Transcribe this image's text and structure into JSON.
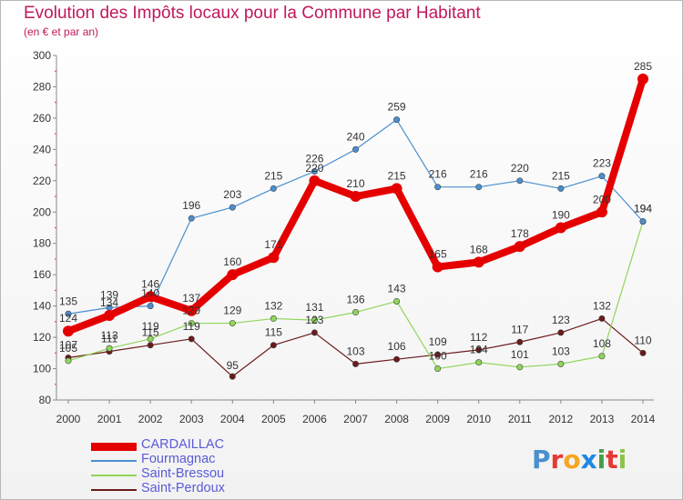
{
  "chart_data": {
    "type": "line",
    "title": "Evolution des Impôts locaux pour la Commune par Habitant",
    "subtitle": "(en € et par an)",
    "x": [
      "2000",
      "2001",
      "2002",
      "2003",
      "2004",
      "2005",
      "2006",
      "2007",
      "2008",
      "2009",
      "2010",
      "2011",
      "2012",
      "2013",
      "2014"
    ],
    "ylim": [
      80,
      300
    ],
    "yticks": [
      "80",
      "100",
      "120",
      "140",
      "160",
      "180",
      "200",
      "220",
      "240",
      "260",
      "280",
      "300"
    ],
    "grid": false,
    "legend_position": "bottom-left",
    "series": [
      {
        "name": "CARDAILLAC",
        "color": "#e50000",
        "values": [
          124,
          134,
          146,
          137,
          160,
          171,
          220,
          210,
          215,
          165,
          168,
          178,
          190,
          200,
          285
        ]
      },
      {
        "name": "Fourmagnac",
        "color": "#4a8fcf",
        "values": [
          135,
          139,
          140,
          196,
          203,
          215,
          226,
          240,
          259,
          216,
          216,
          220,
          215,
          223,
          194
        ]
      },
      {
        "name": "Saint-Bressou",
        "color": "#8fd65a",
        "values": [
          105,
          113,
          119,
          129,
          129,
          132,
          131,
          136,
          143,
          100,
          104,
          101,
          103,
          108,
          194
        ]
      },
      {
        "name": "Saint-Perdoux",
        "color": "#6b1a1a",
        "values": [
          107,
          111,
          115,
          119,
          95,
          115,
          123,
          103,
          106,
          109,
          112,
          117,
          123,
          132,
          110
        ]
      }
    ]
  },
  "logo": {
    "letters": [
      "P",
      "r",
      "o",
      "x",
      "i",
      "t",
      "i"
    ],
    "colors": [
      "#4a8fcf",
      "#e53935",
      "#f5a623",
      "#1e88e5",
      "#43a047",
      "#e53935",
      "#8bc34a"
    ]
  }
}
